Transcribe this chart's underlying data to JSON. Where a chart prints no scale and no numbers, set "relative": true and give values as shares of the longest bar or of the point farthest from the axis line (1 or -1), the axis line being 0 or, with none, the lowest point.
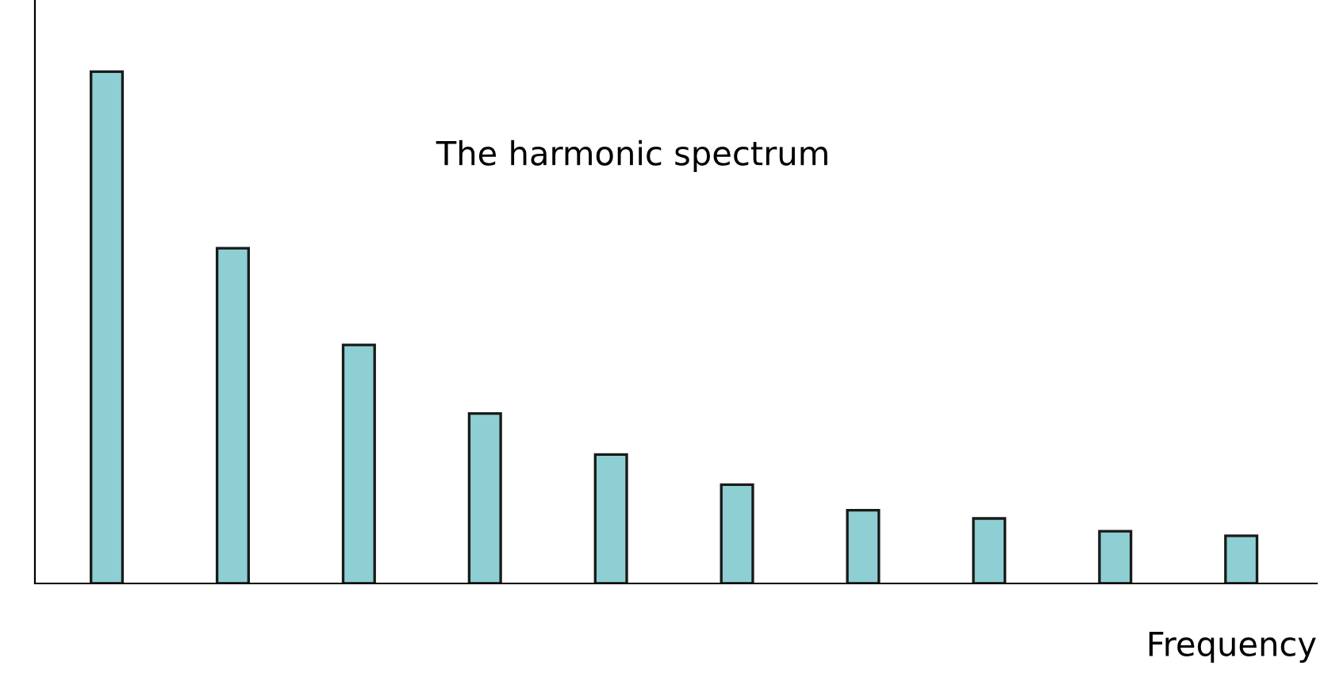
{
  "chart_data": {
    "type": "bar",
    "relative": true,
    "xlabel": "Frequency",
    "annotations": [
      "The harmonic spectrum"
    ],
    "categories": [
      null,
      null,
      null,
      null,
      null,
      null,
      null,
      null,
      null,
      null
    ],
    "values": [
      1,
      0.655,
      0.466,
      0.332,
      0.252,
      0.193,
      0.143,
      0.127,
      0.102,
      0.093
    ],
    "color": "#8ecfd3"
  }
}
